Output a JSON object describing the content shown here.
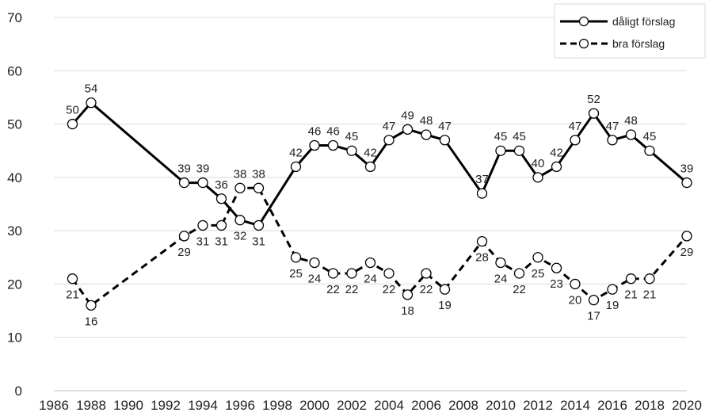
{
  "chart_data": {
    "type": "line",
    "x_ticks": [
      1986,
      1988,
      1990,
      1992,
      1994,
      1996,
      1998,
      2000,
      2002,
      2004,
      2006,
      2008,
      2010,
      2012,
      2014,
      2016,
      2018,
      2020
    ],
    "xlim": [
      1986,
      2020
    ],
    "ylim": [
      0,
      70
    ],
    "y_ticks": [
      0,
      10,
      20,
      30,
      40,
      50,
      60,
      70
    ],
    "grid": "horizontal",
    "legend_position": "top-right",
    "series": [
      {
        "name": "dåligt förslag",
        "style": "solid",
        "x": [
          1987,
          1988,
          1993,
          1994,
          1995,
          1996,
          1997,
          1999,
          2000,
          2001,
          2002,
          2003,
          2004,
          2005,
          2006,
          2007,
          2009,
          2010,
          2011,
          2012,
          2013,
          2014,
          2015,
          2016,
          2017,
          2018,
          2020
        ],
        "values": [
          50,
          54,
          39,
          39,
          36,
          32,
          31,
          42,
          46,
          46,
          45,
          42,
          47,
          49,
          48,
          47,
          37,
          45,
          45,
          40,
          42,
          47,
          52,
          47,
          48,
          45,
          39
        ]
      },
      {
        "name": "bra förslag",
        "style": "dashed",
        "x": [
          1987,
          1988,
          1993,
          1994,
          1995,
          1996,
          1997,
          1999,
          2000,
          2001,
          2002,
          2003,
          2004,
          2005,
          2006,
          2007,
          2009,
          2010,
          2011,
          2012,
          2013,
          2014,
          2015,
          2016,
          2017,
          2018,
          2020
        ],
        "values": [
          21,
          16,
          29,
          31,
          31,
          38,
          38,
          25,
          24,
          22,
          22,
          24,
          22,
          18,
          22,
          19,
          28,
          24,
          22,
          25,
          23,
          20,
          17,
          19,
          21,
          21,
          29
        ]
      }
    ],
    "colors": {
      "line": "#000000",
      "marker_fill": "#ffffff",
      "grid": "#d9d9d9",
      "text": "#222222"
    }
  }
}
